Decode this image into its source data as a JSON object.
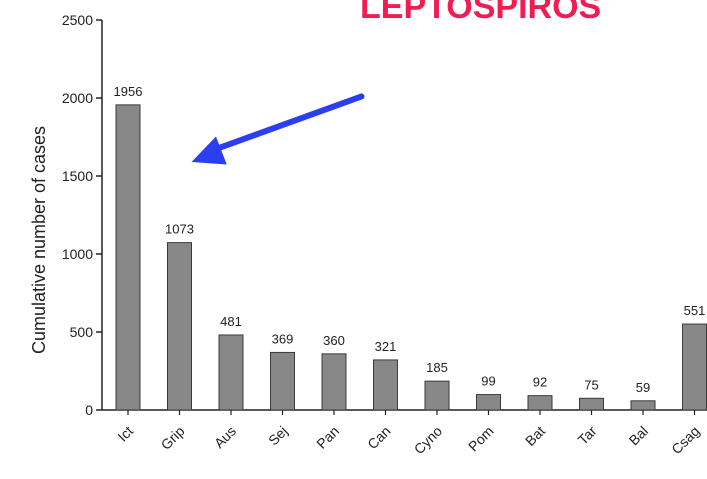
{
  "chart_data": {
    "type": "bar",
    "title": "LEPTOSPIROS",
    "ylabel": "Cumulative number of cases",
    "xlabel": "",
    "categories": [
      "Ict",
      "Grip",
      "Aus",
      "Sej",
      "Pan",
      "Can",
      "Cyno",
      "Pom",
      "Bat",
      "Tar",
      "Bal",
      "Csag"
    ],
    "values": [
      1956,
      1073,
      481,
      369,
      360,
      321,
      185,
      99,
      92,
      75,
      59,
      551
    ],
    "data_labels": [
      "1956",
      "1073",
      "481",
      "369",
      "360",
      "321",
      "185",
      "99",
      "92",
      "75",
      "59",
      "551"
    ],
    "ylim": [
      0,
      2500
    ],
    "yticks": [
      0,
      500,
      1000,
      1500,
      2000,
      2500
    ],
    "ytick_labels": [
      "0",
      "500",
      "1000",
      "1500",
      "2000",
      "2500"
    ],
    "grid": false,
    "legend": "none",
    "colors": {
      "bar_fill": "#888888",
      "bar_stroke": "#3a3a3a",
      "title": "#f01c52",
      "arrow": "#2b3ff0",
      "axis": "#222222"
    },
    "annotations": [
      {
        "type": "arrow",
        "points_to": "Grip"
      }
    ]
  }
}
